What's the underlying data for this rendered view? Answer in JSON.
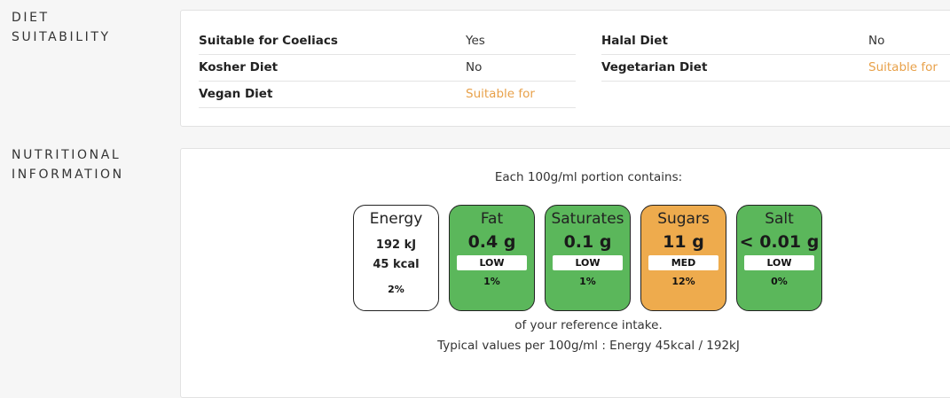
{
  "diet": {
    "heading_line1": "DIET",
    "heading_line2": "SUITABILITY",
    "rows": [
      {
        "label": "Suitable for Coeliacs",
        "value": "Yes"
      },
      {
        "label": "Kosher Diet",
        "value": "No"
      },
      {
        "label": "Vegan Diet",
        "value": "Suitable for"
      },
      {
        "label": "Halal Diet",
        "value": "No"
      },
      {
        "label": "Vegetarian Diet",
        "value": "Suitable for"
      }
    ],
    "accent_color": "#e8a14a"
  },
  "nutrition": {
    "heading_line1": "NUTRITIONAL",
    "heading_line2": "INFORMATION",
    "portion_text": "Each 100g/ml portion contains:",
    "energy": {
      "name": "Energy",
      "kj": "192 kJ",
      "kcal": "45 kcal",
      "percent": "2%"
    },
    "items": [
      {
        "name": "Fat",
        "value": "0.4 g",
        "level": "LOW",
        "percent": "1%",
        "color": "#5bb75b"
      },
      {
        "name": "Saturates",
        "value": "0.1 g",
        "level": "LOW",
        "percent": "1%",
        "color": "#5bb75b"
      },
      {
        "name": "Sugars",
        "value": "11 g",
        "level": "MED",
        "percent": "12%",
        "color": "#eeab4d"
      },
      {
        "name": "Salt",
        "value": "< 0.01 g",
        "level": "LOW",
        "percent": "0%",
        "color": "#5bb75b"
      }
    ],
    "reference_text": "of your reference intake.",
    "typical_text": "Typical values per 100g/ml : Energy 45kcal / 192kJ"
  }
}
